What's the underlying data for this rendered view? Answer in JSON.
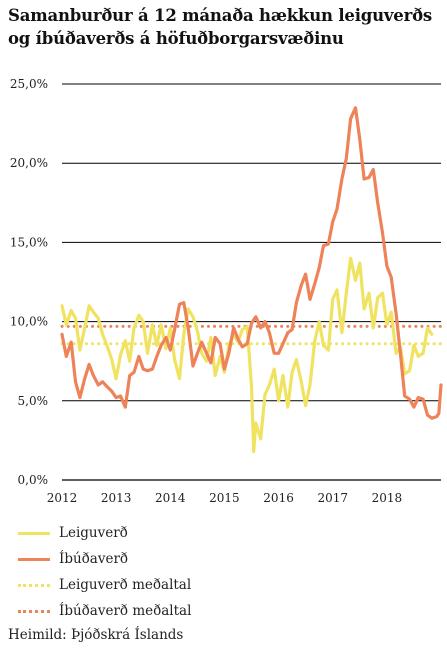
{
  "title": "Samanburður á 12 mánaða hækkun leiguverðs og íbúðaverðs á höfuðborgarsvæðinu",
  "source": "Heimild: Þjóðskrá Íslands",
  "chart_data": {
    "type": "line",
    "title": "Samanburður á 12 mánaða hækkun leiguverðs og íbúðaverðs á höfuðborgarsvæðinu",
    "xlabel": "",
    "ylabel": "",
    "ylim": [
      0,
      25
    ],
    "xlim": [
      2012.0,
      2018.85
    ],
    "grid": "horizontal",
    "legend_position": "bottom",
    "x_ticks": [
      "2012",
      "2013",
      "2014",
      "2015",
      "2016",
      "2017",
      "2018"
    ],
    "y_ticks": [
      "0,0%",
      "5,0%",
      "10,0%",
      "15,0%",
      "20,0%",
      "25,0%"
    ],
    "colors": {
      "leiguverd": "#f0e361",
      "ibudaverd": "#ee8258",
      "leiguverd_medaltal": "#f0e361",
      "ibudaverd_medaltal": "#ee8258"
    },
    "series": [
      {
        "name": "Leiguverð",
        "style": "solid",
        "color": "#f0e361",
        "points": [
          [
            2012.0,
            11.0
          ],
          [
            2012.08,
            9.8
          ],
          [
            2012.17,
            10.7
          ],
          [
            2012.25,
            10.2
          ],
          [
            2012.33,
            8.2
          ],
          [
            2012.42,
            9.6
          ],
          [
            2012.5,
            11.0
          ],
          [
            2012.58,
            10.6
          ],
          [
            2012.67,
            10.2
          ],
          [
            2012.75,
            9.2
          ],
          [
            2012.83,
            8.5
          ],
          [
            2012.92,
            7.6
          ],
          [
            2013.0,
            6.4
          ],
          [
            2013.08,
            7.9
          ],
          [
            2013.17,
            8.8
          ],
          [
            2013.25,
            7.5
          ],
          [
            2013.33,
            9.6
          ],
          [
            2013.42,
            10.4
          ],
          [
            2013.5,
            10.0
          ],
          [
            2013.58,
            8.0
          ],
          [
            2013.67,
            9.8
          ],
          [
            2013.75,
            8.5
          ],
          [
            2013.83,
            9.8
          ],
          [
            2013.92,
            8.3
          ],
          [
            2014.0,
            9.6
          ],
          [
            2014.08,
            7.6
          ],
          [
            2014.17,
            6.4
          ],
          [
            2014.25,
            9.2
          ],
          [
            2014.33,
            10.8
          ],
          [
            2014.42,
            10.3
          ],
          [
            2014.5,
            9.4
          ],
          [
            2014.58,
            8.0
          ],
          [
            2014.67,
            7.5
          ],
          [
            2014.75,
            9.0
          ],
          [
            2014.83,
            6.6
          ],
          [
            2014.92,
            7.8
          ],
          [
            2015.0,
            6.8
          ],
          [
            2015.08,
            8.5
          ],
          [
            2015.17,
            9.2
          ],
          [
            2015.25,
            8.7
          ],
          [
            2015.33,
            9.5
          ],
          [
            2015.42,
            9.7
          ],
          [
            2015.5,
            5.9
          ],
          [
            2015.54,
            1.8
          ],
          [
            2015.58,
            3.6
          ],
          [
            2015.67,
            2.6
          ],
          [
            2015.75,
            5.4
          ],
          [
            2015.83,
            6.0
          ],
          [
            2015.92,
            7.0
          ],
          [
            2016.0,
            5.0
          ],
          [
            2016.08,
            6.6
          ],
          [
            2016.17,
            4.6
          ],
          [
            2016.25,
            6.8
          ],
          [
            2016.33,
            7.6
          ],
          [
            2016.42,
            6.2
          ],
          [
            2016.5,
            4.7
          ],
          [
            2016.58,
            6.0
          ],
          [
            2016.67,
            8.8
          ],
          [
            2016.75,
            10.0
          ],
          [
            2016.83,
            8.5
          ],
          [
            2016.92,
            8.2
          ],
          [
            2017.0,
            11.4
          ],
          [
            2017.08,
            12.0
          ],
          [
            2017.17,
            9.3
          ],
          [
            2017.25,
            11.8
          ],
          [
            2017.33,
            14.0
          ],
          [
            2017.42,
            12.6
          ],
          [
            2017.5,
            13.7
          ],
          [
            2017.58,
            10.8
          ],
          [
            2017.67,
            11.8
          ],
          [
            2017.75,
            9.6
          ],
          [
            2017.83,
            11.5
          ],
          [
            2017.92,
            11.8
          ],
          [
            2018.0,
            9.8
          ],
          [
            2018.08,
            10.6
          ],
          [
            2018.17,
            8.0
          ],
          [
            2018.25,
            8.4
          ],
          [
            2018.33,
            6.7
          ],
          [
            2018.42,
            6.9
          ],
          [
            2018.5,
            8.5
          ],
          [
            2018.58,
            7.8
          ],
          [
            2018.67,
            8.0
          ],
          [
            2018.75,
            9.6
          ],
          [
            2018.83,
            9.2
          ]
        ]
      },
      {
        "name": "Íbúðaverð",
        "style": "solid",
        "color": "#ee8258",
        "points": [
          [
            2012.0,
            9.2
          ],
          [
            2012.08,
            7.8
          ],
          [
            2012.17,
            8.7
          ],
          [
            2012.25,
            6.2
          ],
          [
            2012.33,
            5.2
          ],
          [
            2012.42,
            6.4
          ],
          [
            2012.5,
            7.3
          ],
          [
            2012.58,
            6.6
          ],
          [
            2012.67,
            6.0
          ],
          [
            2012.75,
            6.2
          ],
          [
            2012.83,
            5.9
          ],
          [
            2012.92,
            5.6
          ],
          [
            2013.0,
            5.2
          ],
          [
            2013.08,
            5.3
          ],
          [
            2013.17,
            4.6
          ],
          [
            2013.25,
            6.6
          ],
          [
            2013.33,
            6.8
          ],
          [
            2013.42,
            7.8
          ],
          [
            2013.5,
            7.0
          ],
          [
            2013.58,
            6.9
          ],
          [
            2013.67,
            7.0
          ],
          [
            2013.75,
            7.8
          ],
          [
            2013.83,
            8.5
          ],
          [
            2013.92,
            9.0
          ],
          [
            2014.0,
            8.2
          ],
          [
            2014.08,
            9.5
          ],
          [
            2014.17,
            11.1
          ],
          [
            2014.25,
            11.2
          ],
          [
            2014.33,
            9.6
          ],
          [
            2014.42,
            7.2
          ],
          [
            2014.5,
            8.0
          ],
          [
            2014.58,
            8.7
          ],
          [
            2014.67,
            8.0
          ],
          [
            2014.75,
            7.4
          ],
          [
            2014.83,
            9.0
          ],
          [
            2014.92,
            8.6
          ],
          [
            2015.0,
            7.0
          ],
          [
            2015.08,
            8.0
          ],
          [
            2015.17,
            9.6
          ],
          [
            2015.25,
            8.9
          ],
          [
            2015.33,
            8.4
          ],
          [
            2015.42,
            8.6
          ],
          [
            2015.5,
            9.9
          ],
          [
            2015.58,
            10.3
          ],
          [
            2015.67,
            9.6
          ],
          [
            2015.75,
            10.0
          ],
          [
            2015.83,
            9.3
          ],
          [
            2015.92,
            8.0
          ],
          [
            2016.0,
            8.0
          ],
          [
            2016.08,
            8.6
          ],
          [
            2016.17,
            9.3
          ],
          [
            2016.25,
            9.5
          ],
          [
            2016.33,
            11.2
          ],
          [
            2016.42,
            12.3
          ],
          [
            2016.5,
            13.0
          ],
          [
            2016.58,
            11.4
          ],
          [
            2016.67,
            12.4
          ],
          [
            2016.75,
            13.4
          ],
          [
            2016.83,
            14.8
          ],
          [
            2016.92,
            14.9
          ],
          [
            2017.0,
            16.3
          ],
          [
            2017.08,
            17.1
          ],
          [
            2017.17,
            19.0
          ],
          [
            2017.25,
            20.3
          ],
          [
            2017.33,
            22.8
          ],
          [
            2017.42,
            23.5
          ],
          [
            2017.5,
            21.5
          ],
          [
            2017.58,
            19.0
          ],
          [
            2017.67,
            19.1
          ],
          [
            2017.75,
            19.6
          ],
          [
            2017.83,
            17.5
          ],
          [
            2017.92,
            15.6
          ],
          [
            2018.0,
            13.5
          ],
          [
            2018.08,
            12.8
          ],
          [
            2018.17,
            10.5
          ],
          [
            2018.25,
            8.0
          ],
          [
            2018.33,
            5.3
          ],
          [
            2018.42,
            5.1
          ],
          [
            2018.5,
            4.6
          ],
          [
            2018.58,
            5.2
          ],
          [
            2018.67,
            5.1
          ],
          [
            2018.75,
            4.1
          ],
          [
            2018.83,
            3.9
          ],
          [
            2018.92,
            4.0
          ],
          [
            2018.96,
            4.2
          ],
          [
            2019.0,
            6.0
          ]
        ]
      },
      {
        "name": "Leiguverð meðaltal",
        "style": "dotted",
        "color": "#f0e361",
        "points": [
          [
            2012.0,
            8.6
          ],
          [
            2019.0,
            8.6
          ]
        ]
      },
      {
        "name": "Íbúðaverð meðaltal",
        "style": "dotted",
        "color": "#ee8258",
        "points": [
          [
            2012.0,
            9.7
          ],
          [
            2019.0,
            9.7
          ]
        ]
      }
    ]
  },
  "legend": [
    {
      "label": "Leiguverð",
      "style": "solid",
      "color": "#f0e361"
    },
    {
      "label": "Íbúðaverð",
      "style": "solid",
      "color": "#ee8258"
    },
    {
      "label": "Leiguverð meðaltal",
      "style": "dotted",
      "color": "#f0e361"
    },
    {
      "label": "Íbúðaverð meðaltal",
      "style": "dotted",
      "color": "#ee8258"
    }
  ]
}
